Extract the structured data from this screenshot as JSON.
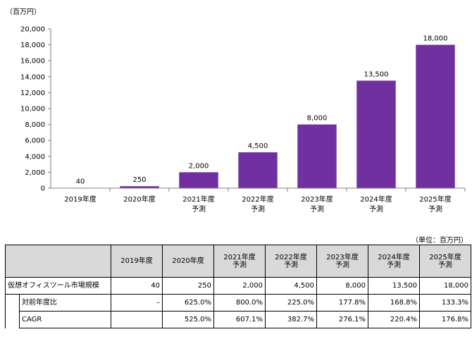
{
  "chart_data": {
    "type": "bar",
    "unit_label": "（百万円）",
    "categories": [
      "2019年度",
      "2020年度",
      "2021年度\n予測",
      "2022年度\n予測",
      "2023年度\n予測",
      "2024年度\n予測",
      "2025年度\n予測"
    ],
    "values": [
      40,
      250,
      2000,
      4500,
      8000,
      13500,
      18000
    ],
    "value_labels": [
      "40",
      "250",
      "2,000",
      "4,500",
      "8,000",
      "13,500",
      "18,000"
    ],
    "y_ticks": [
      "0",
      "2,000",
      "4,000",
      "6,000",
      "8,000",
      "10,000",
      "12,000",
      "14,000",
      "16,000",
      "18,000",
      "20,000"
    ],
    "ylim": [
      0,
      20000
    ],
    "bar_color": "#7030a0",
    "grid": false,
    "title": "",
    "xlabel": "",
    "ylabel": ""
  },
  "table": {
    "unit_note": "（単位：百万円）",
    "headers": [
      "",
      "2019年度",
      "2020年度",
      "2021年度\n予測",
      "2022年度\n予測",
      "2023年度\n予測",
      "2024年度\n予測",
      "2025年度\n予測"
    ],
    "rows": [
      {
        "label": "仮想オフィスツール市場規模",
        "cells": [
          "40",
          "250",
          "2,000",
          "4,500",
          "8,000",
          "13,500",
          "18,000"
        ]
      },
      {
        "label": "対前年度比",
        "cells": [
          "–",
          "625.0%",
          "800.0%",
          "225.0%",
          "177.8%",
          "168.8%",
          "133.3%"
        ]
      },
      {
        "label": "CAGR",
        "cells": [
          "",
          "525.0%",
          "607.1%",
          "382.7%",
          "276.1%",
          "220.4%",
          "176.8%"
        ]
      }
    ]
  }
}
